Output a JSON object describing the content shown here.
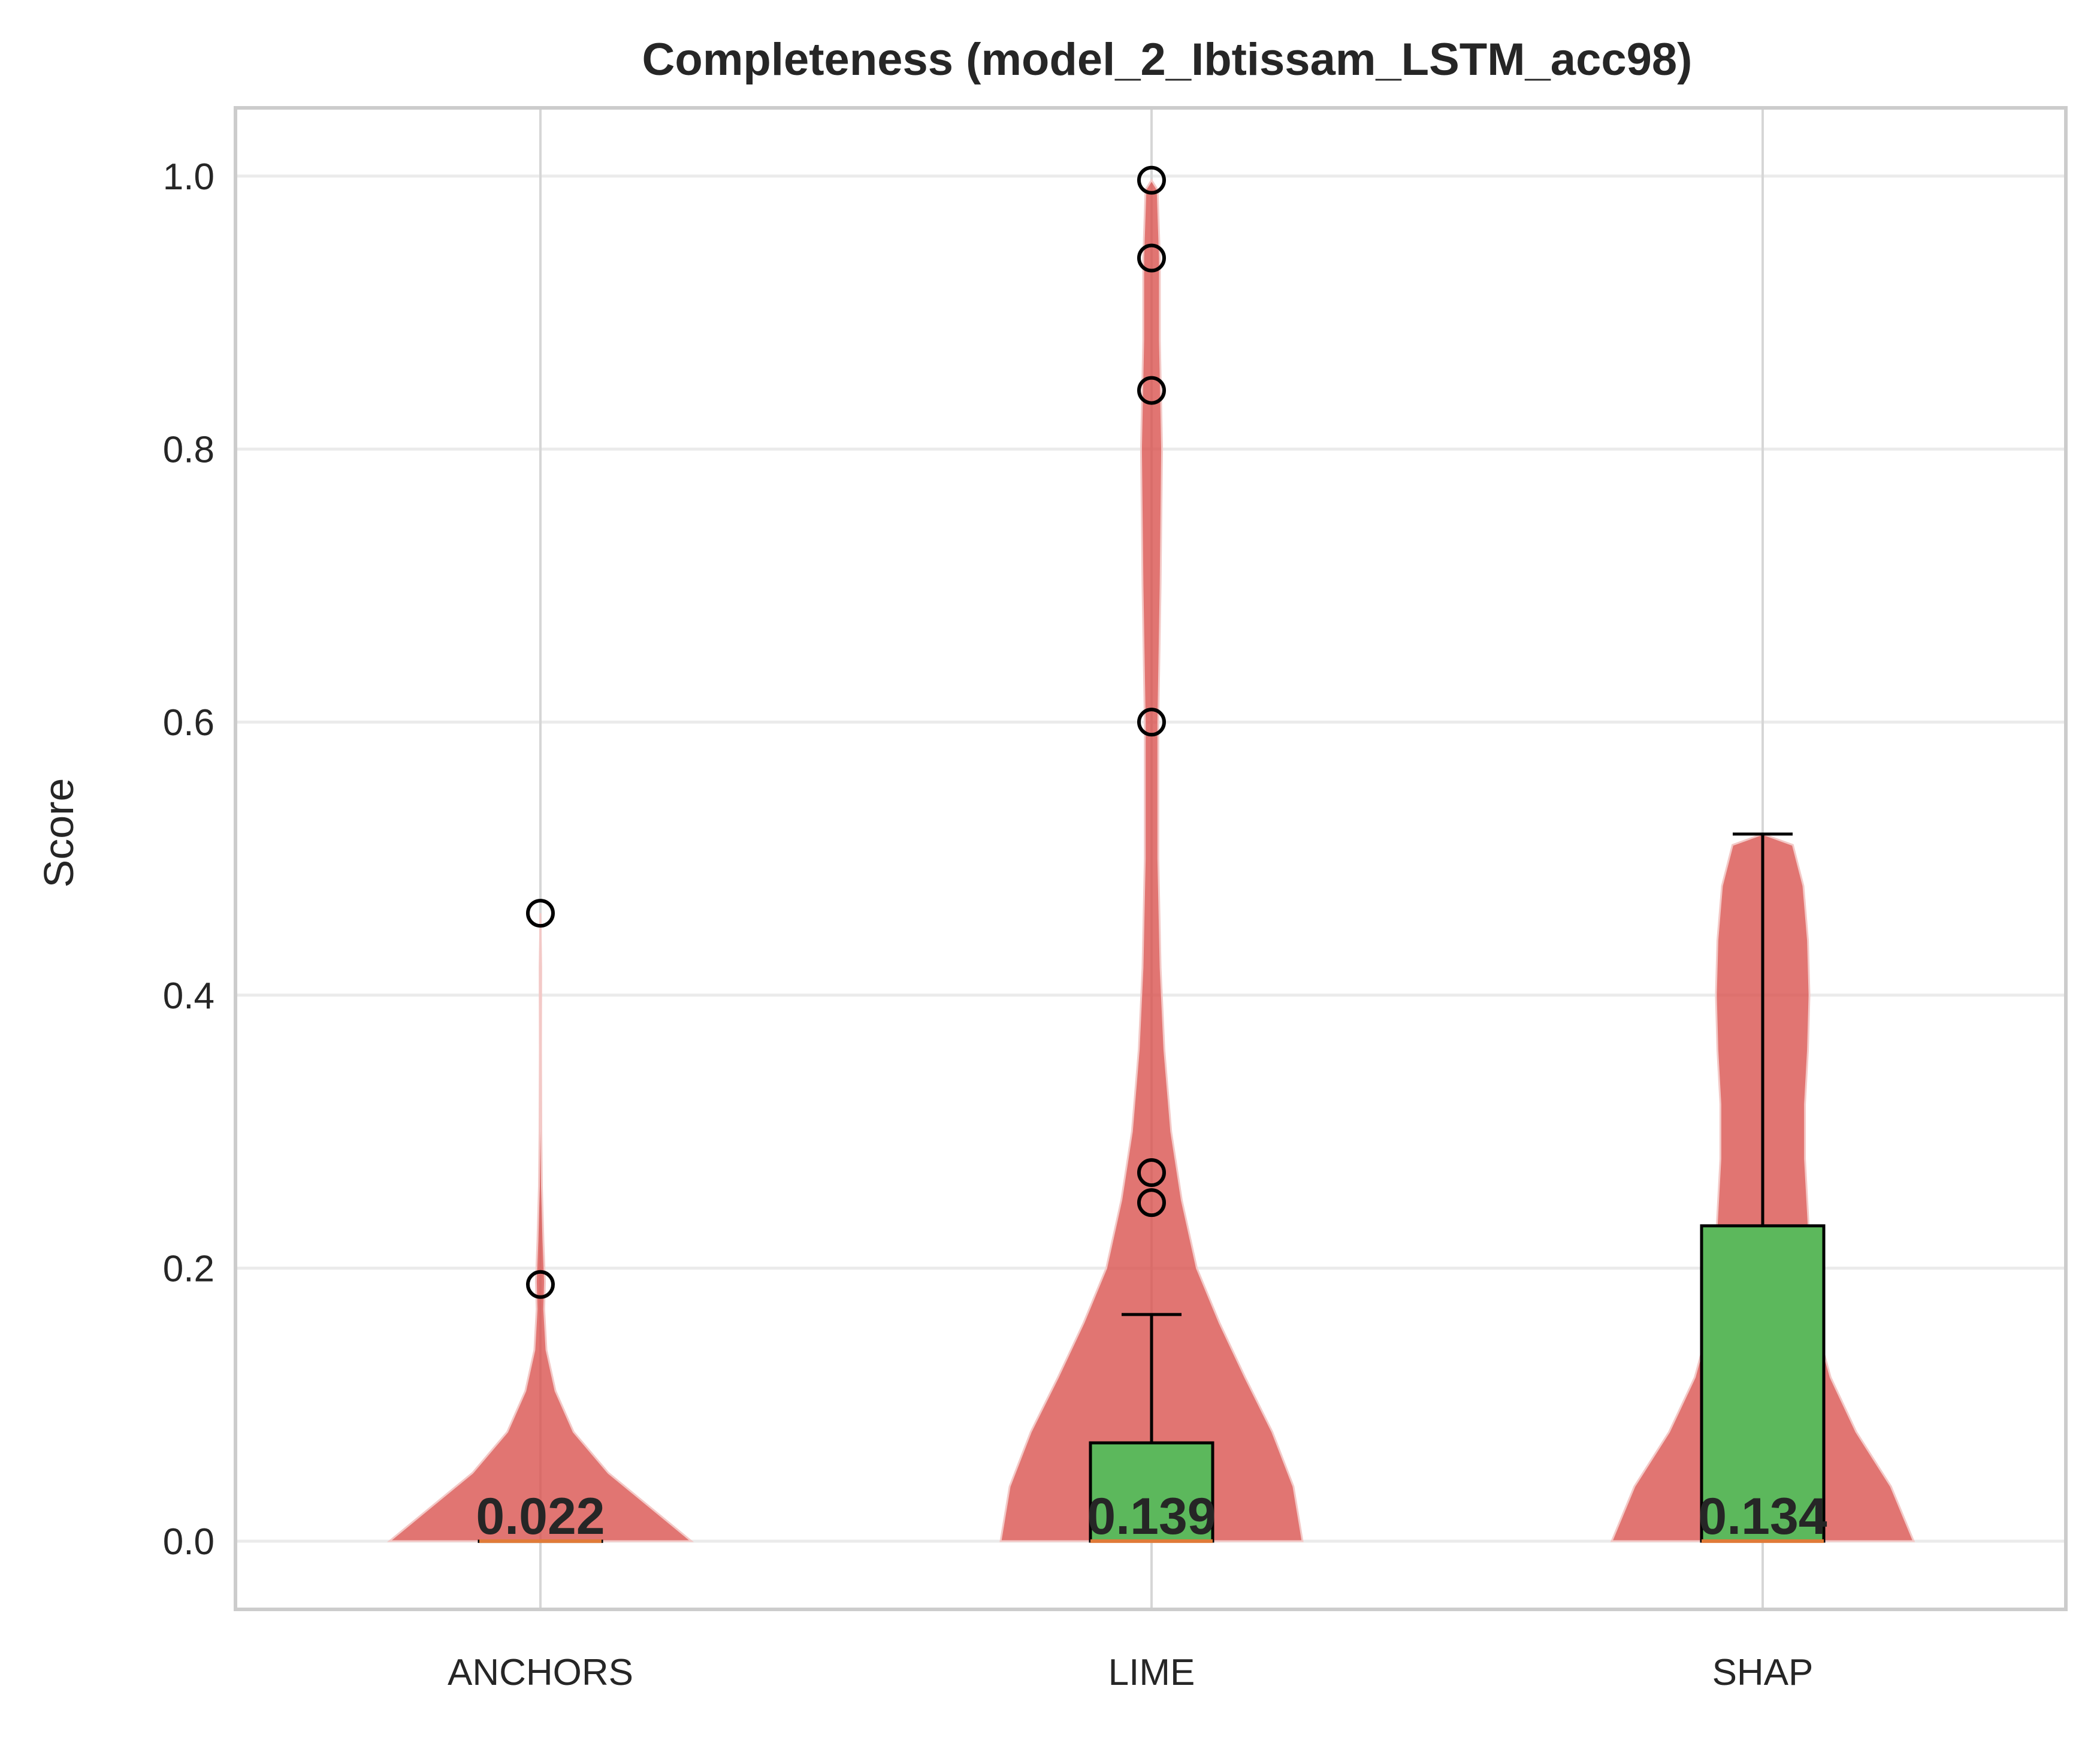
{
  "chart_data": {
    "type": "violin",
    "title": "Completeness (model_2_Ibtissam_LSTM_acc98)",
    "xlabel": "",
    "ylabel": "Score",
    "ylim": [
      -0.05,
      1.05
    ],
    "yticks": [
      0.0,
      0.2,
      0.4,
      0.6,
      0.8,
      1.0
    ],
    "ytick_labels": [
      "0.0",
      "0.2",
      "0.4",
      "0.6",
      "0.8",
      "1.0"
    ],
    "grid": true,
    "categories": [
      "ANCHORS",
      "LIME",
      "SHAP"
    ],
    "series": [
      {
        "category": "ANCHORS",
        "mean": 0.022,
        "mean_label": "0.022",
        "median": 0.0,
        "q1": 0.0,
        "q3": 0.0,
        "whisker_low": 0.0,
        "whisker_high": 0.0,
        "outliers": [
          0.188,
          0.46
        ],
        "violin_max": 0.46,
        "density": [
          [
            0.0,
            1.0
          ],
          [
            0.02,
            0.78
          ],
          [
            0.05,
            0.45
          ],
          [
            0.08,
            0.22
          ],
          [
            0.11,
            0.1
          ],
          [
            0.14,
            0.04
          ],
          [
            0.17,
            0.025
          ],
          [
            0.19,
            0.03
          ],
          [
            0.22,
            0.02
          ],
          [
            0.26,
            0.01
          ],
          [
            0.3,
            0.006
          ],
          [
            0.36,
            0.004
          ],
          [
            0.42,
            0.005
          ],
          [
            0.46,
            0.0
          ]
        ]
      },
      {
        "category": "LIME",
        "mean": 0.139,
        "mean_label": "0.139",
        "median": 0.0,
        "q1": 0.0,
        "q3": 0.072,
        "whisker_low": 0.0,
        "whisker_high": 0.166,
        "outliers": [
          0.248,
          0.27,
          0.6,
          0.843,
          0.94,
          0.997
        ],
        "violin_max": 0.997,
        "density": [
          [
            0.0,
            1.0
          ],
          [
            0.04,
            0.94
          ],
          [
            0.08,
            0.8
          ],
          [
            0.12,
            0.62
          ],
          [
            0.16,
            0.45
          ],
          [
            0.2,
            0.3
          ],
          [
            0.25,
            0.2
          ],
          [
            0.3,
            0.13
          ],
          [
            0.36,
            0.085
          ],
          [
            0.42,
            0.06
          ],
          [
            0.5,
            0.045
          ],
          [
            0.6,
            0.045
          ],
          [
            0.7,
            0.06
          ],
          [
            0.8,
            0.07
          ],
          [
            0.88,
            0.055
          ],
          [
            0.94,
            0.055
          ],
          [
            0.99,
            0.04
          ],
          [
            0.997,
            0.0
          ]
        ]
      },
      {
        "category": "SHAP",
        "mean": 0.134,
        "mean_label": "0.134",
        "median": 0.0,
        "q1": 0.0,
        "q3": 0.231,
        "whisker_low": 0.0,
        "whisker_high": 0.518,
        "outliers": [],
        "violin_max": 0.518,
        "density": [
          [
            0.0,
            1.0
          ],
          [
            0.04,
            0.85
          ],
          [
            0.08,
            0.62
          ],
          [
            0.12,
            0.45
          ],
          [
            0.16,
            0.35
          ],
          [
            0.2,
            0.32
          ],
          [
            0.24,
            0.3
          ],
          [
            0.28,
            0.28
          ],
          [
            0.32,
            0.28
          ],
          [
            0.36,
            0.3
          ],
          [
            0.4,
            0.31
          ],
          [
            0.44,
            0.3
          ],
          [
            0.48,
            0.27
          ],
          [
            0.51,
            0.2
          ],
          [
            0.518,
            0.0
          ]
        ]
      }
    ],
    "colors": {
      "violin": "#d9534f",
      "box": "#5cb85c",
      "median_line": "#e07b39",
      "edge": "#000000",
      "grid": "#ebebeb",
      "frame": "#cccccc"
    }
  }
}
